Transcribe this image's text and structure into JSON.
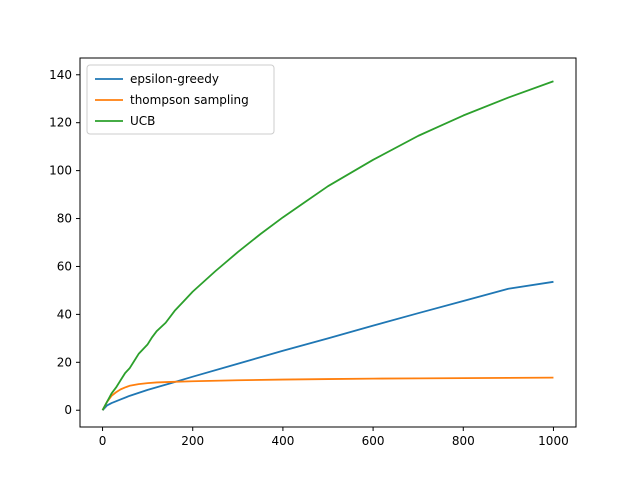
{
  "chart_data": {
    "type": "line",
    "title": "",
    "xlabel": "",
    "ylabel": "",
    "xlim": [
      -50,
      1050
    ],
    "ylim": [
      -7,
      147
    ],
    "xticks": [
      0,
      200,
      400,
      600,
      800,
      1000
    ],
    "yticks": [
      0,
      20,
      40,
      60,
      80,
      100,
      120,
      140
    ],
    "grid": false,
    "legend_position": "upper-left",
    "series": [
      {
        "name": "epsilon-greedy",
        "color": "#1f77b4",
        "x": [
          0,
          10,
          20,
          40,
          60,
          100,
          150,
          200,
          300,
          400,
          500,
          600,
          700,
          800,
          900,
          1000
        ],
        "y": [
          0,
          2,
          3,
          4.5,
          6,
          8.5,
          11.2,
          14,
          19.4,
          24.8,
          30,
          35.3,
          40.5,
          45.6,
          50.7,
          53.6
        ]
      },
      {
        "name": "thompson sampling",
        "color": "#ff7f0e",
        "x": [
          0,
          10,
          20,
          30,
          40,
          50,
          60,
          80,
          100,
          120,
          150,
          200,
          300,
          400,
          500,
          600,
          700,
          800,
          900,
          1000
        ],
        "y": [
          0,
          3.5,
          6,
          7.5,
          8.7,
          9.5,
          10.2,
          10.9,
          11.3,
          11.6,
          11.8,
          12.1,
          12.5,
          12.8,
          13,
          13.2,
          13.3,
          13.4,
          13.5,
          13.6
        ]
      },
      {
        "name": "UCB",
        "color": "#2ca02c",
        "x": [
          0,
          10,
          20,
          30,
          40,
          50,
          60,
          70,
          80,
          90,
          100,
          110,
          120,
          140,
          160,
          180,
          200,
          250,
          300,
          350,
          400,
          450,
          500,
          600,
          700,
          800,
          900,
          1000
        ],
        "y": [
          0,
          3.5,
          7,
          9.5,
          12.5,
          15.5,
          17.5,
          20.5,
          23.5,
          25.5,
          27.5,
          30.5,
          33,
          36.5,
          41.5,
          45.5,
          49.5,
          58,
          66,
          73.5,
          80.5,
          87,
          93.5,
          104.5,
          114.5,
          123,
          130.5,
          137.3
        ]
      }
    ]
  }
}
